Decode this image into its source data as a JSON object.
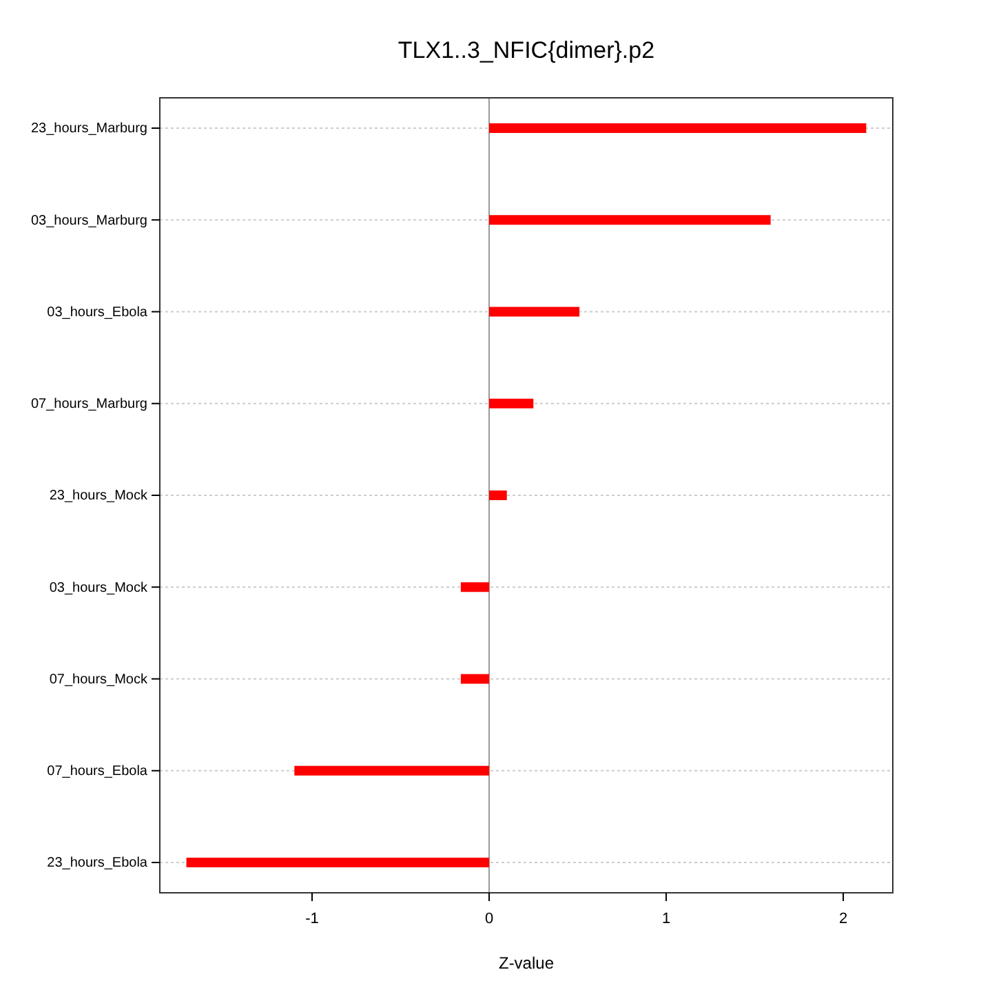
{
  "chart_data": {
    "type": "bar",
    "orientation": "horizontal",
    "title": "TLX1..3_NFIC{dimer}.p2",
    "xlabel": "Z-value",
    "categories": [
      "23_hours_Marburg",
      "03_hours_Marburg",
      "03_hours_Ebola",
      "07_hours_Marburg",
      "23_hours_Mock",
      "03_hours_Mock",
      "07_hours_Mock",
      "07_hours_Ebola",
      "23_hours_Ebola"
    ],
    "values": [
      2.13,
      1.59,
      0.51,
      0.25,
      0.1,
      -0.16,
      -0.16,
      -1.1,
      -1.71
    ],
    "color": "#ff0000",
    "xlim": [
      -1.86,
      2.28
    ],
    "xticks": [
      -1,
      0,
      1,
      2
    ],
    "grid": "y",
    "ref_lines": [
      {
        "axis": "x",
        "value": 0,
        "color": "#999999"
      }
    ]
  }
}
